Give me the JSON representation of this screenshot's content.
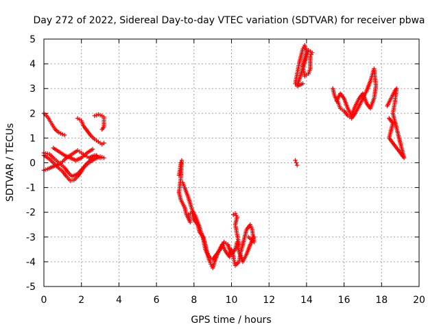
{
  "chart_data": {
    "type": "scatter",
    "title": "Day 272 of 2022, Sidereal Day-to-day VTEC variation (SDTVAR) for receiver pbwa",
    "xlabel": "GPS time / hours",
    "ylabel": "SDTVAR / TECUs",
    "xlim": [
      0,
      20
    ],
    "ylim": [
      -5,
      5
    ],
    "xticks": [
      "0",
      "2",
      "4",
      "6",
      "8",
      "10",
      "12",
      "14",
      "16",
      "18",
      "20"
    ],
    "yticks": [
      "-5",
      "-4",
      "-3",
      "-2",
      "-1",
      "0",
      "1",
      "2",
      "3",
      "4",
      "5"
    ],
    "grid": true,
    "marker": "plus",
    "color": "#ff0000",
    "series": [
      {
        "values": [
          [
            0.0,
            2.0
          ],
          [
            0.2,
            1.85
          ],
          [
            0.4,
            1.6
          ],
          [
            0.6,
            1.35
          ],
          [
            0.8,
            1.22
          ],
          [
            1.0,
            1.15
          ],
          [
            1.1,
            1.12
          ]
        ]
      },
      {
        "values": [
          [
            0.0,
            0.4
          ],
          [
            0.3,
            0.35
          ],
          [
            0.5,
            0.2
          ],
          [
            0.8,
            0.0
          ],
          [
            1.1,
            -0.2
          ],
          [
            1.3,
            -0.4
          ],
          [
            1.5,
            -0.55
          ],
          [
            1.8,
            -0.45
          ],
          [
            2.1,
            -0.2
          ],
          [
            2.4,
            0.0
          ],
          [
            2.7,
            0.15
          ],
          [
            3.0,
            0.25
          ],
          [
            3.2,
            0.2
          ]
        ]
      },
      {
        "values": [
          [
            0.0,
            -0.3
          ],
          [
            0.2,
            -0.25
          ],
          [
            0.5,
            -0.15
          ],
          [
            0.8,
            -0.05
          ],
          [
            1.0,
            0.05
          ],
          [
            1.2,
            0.2
          ],
          [
            1.5,
            0.35
          ],
          [
            1.8,
            0.5
          ],
          [
            2.0,
            0.4
          ],
          [
            2.2,
            0.3
          ],
          [
            2.4,
            0.2
          ],
          [
            2.7,
            0.3
          ],
          [
            3.0,
            0.2
          ]
        ]
      },
      {
        "values": [
          [
            0.0,
            0.3
          ],
          [
            0.3,
            0.15
          ],
          [
            0.5,
            0.0
          ],
          [
            0.7,
            -0.15
          ],
          [
            1.0,
            -0.35
          ],
          [
            1.2,
            -0.55
          ],
          [
            1.4,
            -0.72
          ],
          [
            1.6,
            -0.7
          ],
          [
            1.8,
            -0.55
          ],
          [
            2.0,
            -0.35
          ],
          [
            2.2,
            -0.1
          ],
          [
            2.4,
            0.05
          ],
          [
            2.6,
            0.2
          ],
          [
            2.8,
            0.3
          ]
        ]
      },
      {
        "values": [
          [
            0.5,
            0.6
          ],
          [
            0.8,
            0.45
          ],
          [
            1.1,
            0.3
          ],
          [
            1.4,
            0.2
          ],
          [
            1.7,
            0.1
          ],
          [
            2.0,
            0.2
          ],
          [
            2.3,
            0.4
          ],
          [
            2.6,
            0.55
          ]
        ]
      },
      {
        "values": [
          [
            1.8,
            1.8
          ],
          [
            2.0,
            1.7
          ],
          [
            2.1,
            1.5
          ],
          [
            2.3,
            1.3
          ],
          [
            2.5,
            1.1
          ],
          [
            2.7,
            0.95
          ],
          [
            2.9,
            0.85
          ],
          [
            3.1,
            0.75
          ],
          [
            3.2,
            0.8
          ]
        ]
      },
      {
        "values": [
          [
            2.7,
            1.9
          ],
          [
            2.9,
            1.95
          ],
          [
            3.1,
            1.9
          ],
          [
            3.2,
            1.85
          ],
          [
            3.2,
            1.45
          ],
          [
            3.1,
            1.35
          ]
        ]
      },
      {
        "values": [
          [
            7.2,
            -0.5
          ],
          [
            7.25,
            -0.3
          ],
          [
            7.3,
            0.0
          ],
          [
            7.35,
            0.1
          ],
          [
            7.3,
            -0.6
          ],
          [
            7.2,
            -1.2
          ],
          [
            7.3,
            -1.5
          ],
          [
            7.5,
            -1.8
          ],
          [
            7.6,
            -2.1
          ],
          [
            7.8,
            -2.4
          ],
          [
            7.7,
            -2.1
          ],
          [
            7.9,
            -2.0
          ],
          [
            8.0,
            -2.3
          ],
          [
            8.2,
            -2.5
          ],
          [
            8.3,
            -2.8
          ],
          [
            8.5,
            -3.0
          ],
          [
            8.6,
            -3.3
          ],
          [
            8.7,
            -3.6
          ],
          [
            8.8,
            -3.9
          ],
          [
            8.9,
            -4.1
          ],
          [
            9.0,
            -4.25
          ],
          [
            9.1,
            -4.0
          ],
          [
            9.3,
            -3.6
          ],
          [
            9.5,
            -3.3
          ],
          [
            9.7,
            -3.6
          ],
          [
            9.9,
            -3.8
          ],
          [
            10.0,
            -3.5
          ],
          [
            10.1,
            -3.8
          ],
          [
            10.2,
            -4.15
          ],
          [
            10.4,
            -4.0
          ],
          [
            10.5,
            -3.6
          ],
          [
            10.6,
            -3.3
          ],
          [
            10.7,
            -3.0
          ],
          [
            10.8,
            -2.7
          ],
          [
            11.0,
            -2.5
          ],
          [
            11.1,
            -2.7
          ],
          [
            11.2,
            -3.2
          ],
          [
            10.9,
            -3.0
          ]
        ]
      },
      {
        "values": [
          [
            7.4,
            -0.8
          ],
          [
            7.5,
            -1.0
          ],
          [
            7.7,
            -1.4
          ],
          [
            7.9,
            -1.9
          ],
          [
            8.1,
            -2.2
          ],
          [
            8.3,
            -2.6
          ],
          [
            8.5,
            -3.1
          ],
          [
            8.6,
            -3.5
          ],
          [
            8.8,
            -3.8
          ],
          [
            9.0,
            -3.9
          ],
          [
            9.2,
            -3.7
          ],
          [
            9.4,
            -3.5
          ],
          [
            9.6,
            -3.2
          ],
          [
            9.8,
            -3.3
          ],
          [
            10.0,
            -3.7
          ],
          [
            10.2,
            -3.5
          ],
          [
            10.3,
            -3.2
          ],
          [
            10.4,
            -3.6
          ],
          [
            10.6,
            -4.0
          ],
          [
            10.8,
            -3.7
          ],
          [
            11.0,
            -3.3
          ],
          [
            11.2,
            -3.0
          ]
        ]
      },
      {
        "values": [
          [
            10.1,
            -2.1
          ],
          [
            10.2,
            -2.05
          ],
          [
            10.3,
            -2.2
          ],
          [
            10.2,
            -2.5
          ],
          [
            10.3,
            -2.9
          ],
          [
            10.4,
            -3.3
          ]
        ]
      },
      {
        "values": [
          [
            13.4,
            3.2
          ],
          [
            13.5,
            3.6
          ],
          [
            13.6,
            4.0
          ],
          [
            13.7,
            4.3
          ],
          [
            13.8,
            4.6
          ],
          [
            13.9,
            4.75
          ],
          [
            14.0,
            4.5
          ],
          [
            13.8,
            3.9
          ],
          [
            13.9,
            3.5
          ],
          [
            14.1,
            3.6
          ],
          [
            14.2,
            3.8
          ],
          [
            14.2,
            4.3
          ],
          [
            14.3,
            4.45
          ],
          [
            14.1,
            4.55
          ],
          [
            13.5,
            3.1
          ],
          [
            13.8,
            3.2
          ]
        ]
      },
      {
        "values": [
          [
            13.4,
            0.1
          ],
          [
            13.45,
            0.0
          ],
          [
            13.5,
            -0.1
          ]
        ]
      },
      {
        "values": [
          [
            15.4,
            3.0
          ],
          [
            15.5,
            2.7
          ],
          [
            15.7,
            2.4
          ],
          [
            15.8,
            2.2
          ],
          [
            16.0,
            2.1
          ],
          [
            16.2,
            1.9
          ],
          [
            16.4,
            1.8
          ],
          [
            16.6,
            2.0
          ],
          [
            16.8,
            2.3
          ],
          [
            17.0,
            2.6
          ],
          [
            17.2,
            2.9
          ],
          [
            17.4,
            3.3
          ],
          [
            17.6,
            3.8
          ],
          [
            17.7,
            3.1
          ],
          [
            17.6,
            2.6
          ],
          [
            17.4,
            2.2
          ],
          [
            17.2,
            2.4
          ],
          [
            17.0,
            2.8
          ],
          [
            16.8,
            2.6
          ],
          [
            16.6,
            2.3
          ],
          [
            16.4,
            1.9
          ],
          [
            16.2,
            2.2
          ],
          [
            16.0,
            2.6
          ],
          [
            15.8,
            2.8
          ],
          [
            15.6,
            2.5
          ]
        ]
      },
      {
        "values": [
          [
            18.3,
            2.3
          ],
          [
            18.5,
            2.6
          ],
          [
            18.7,
            2.9
          ],
          [
            18.8,
            3.0
          ],
          [
            18.7,
            2.4
          ],
          [
            18.6,
            2.0
          ],
          [
            18.7,
            1.7
          ],
          [
            18.8,
            1.4
          ],
          [
            18.9,
            1.1
          ],
          [
            19.0,
            0.8
          ],
          [
            19.1,
            0.5
          ],
          [
            19.2,
            0.2
          ],
          [
            19.0,
            0.4
          ],
          [
            18.8,
            0.6
          ],
          [
            18.6,
            0.8
          ],
          [
            18.4,
            1.0
          ],
          [
            18.5,
            1.3
          ],
          [
            18.6,
            1.6
          ],
          [
            18.4,
            1.8
          ]
        ]
      }
    ]
  }
}
